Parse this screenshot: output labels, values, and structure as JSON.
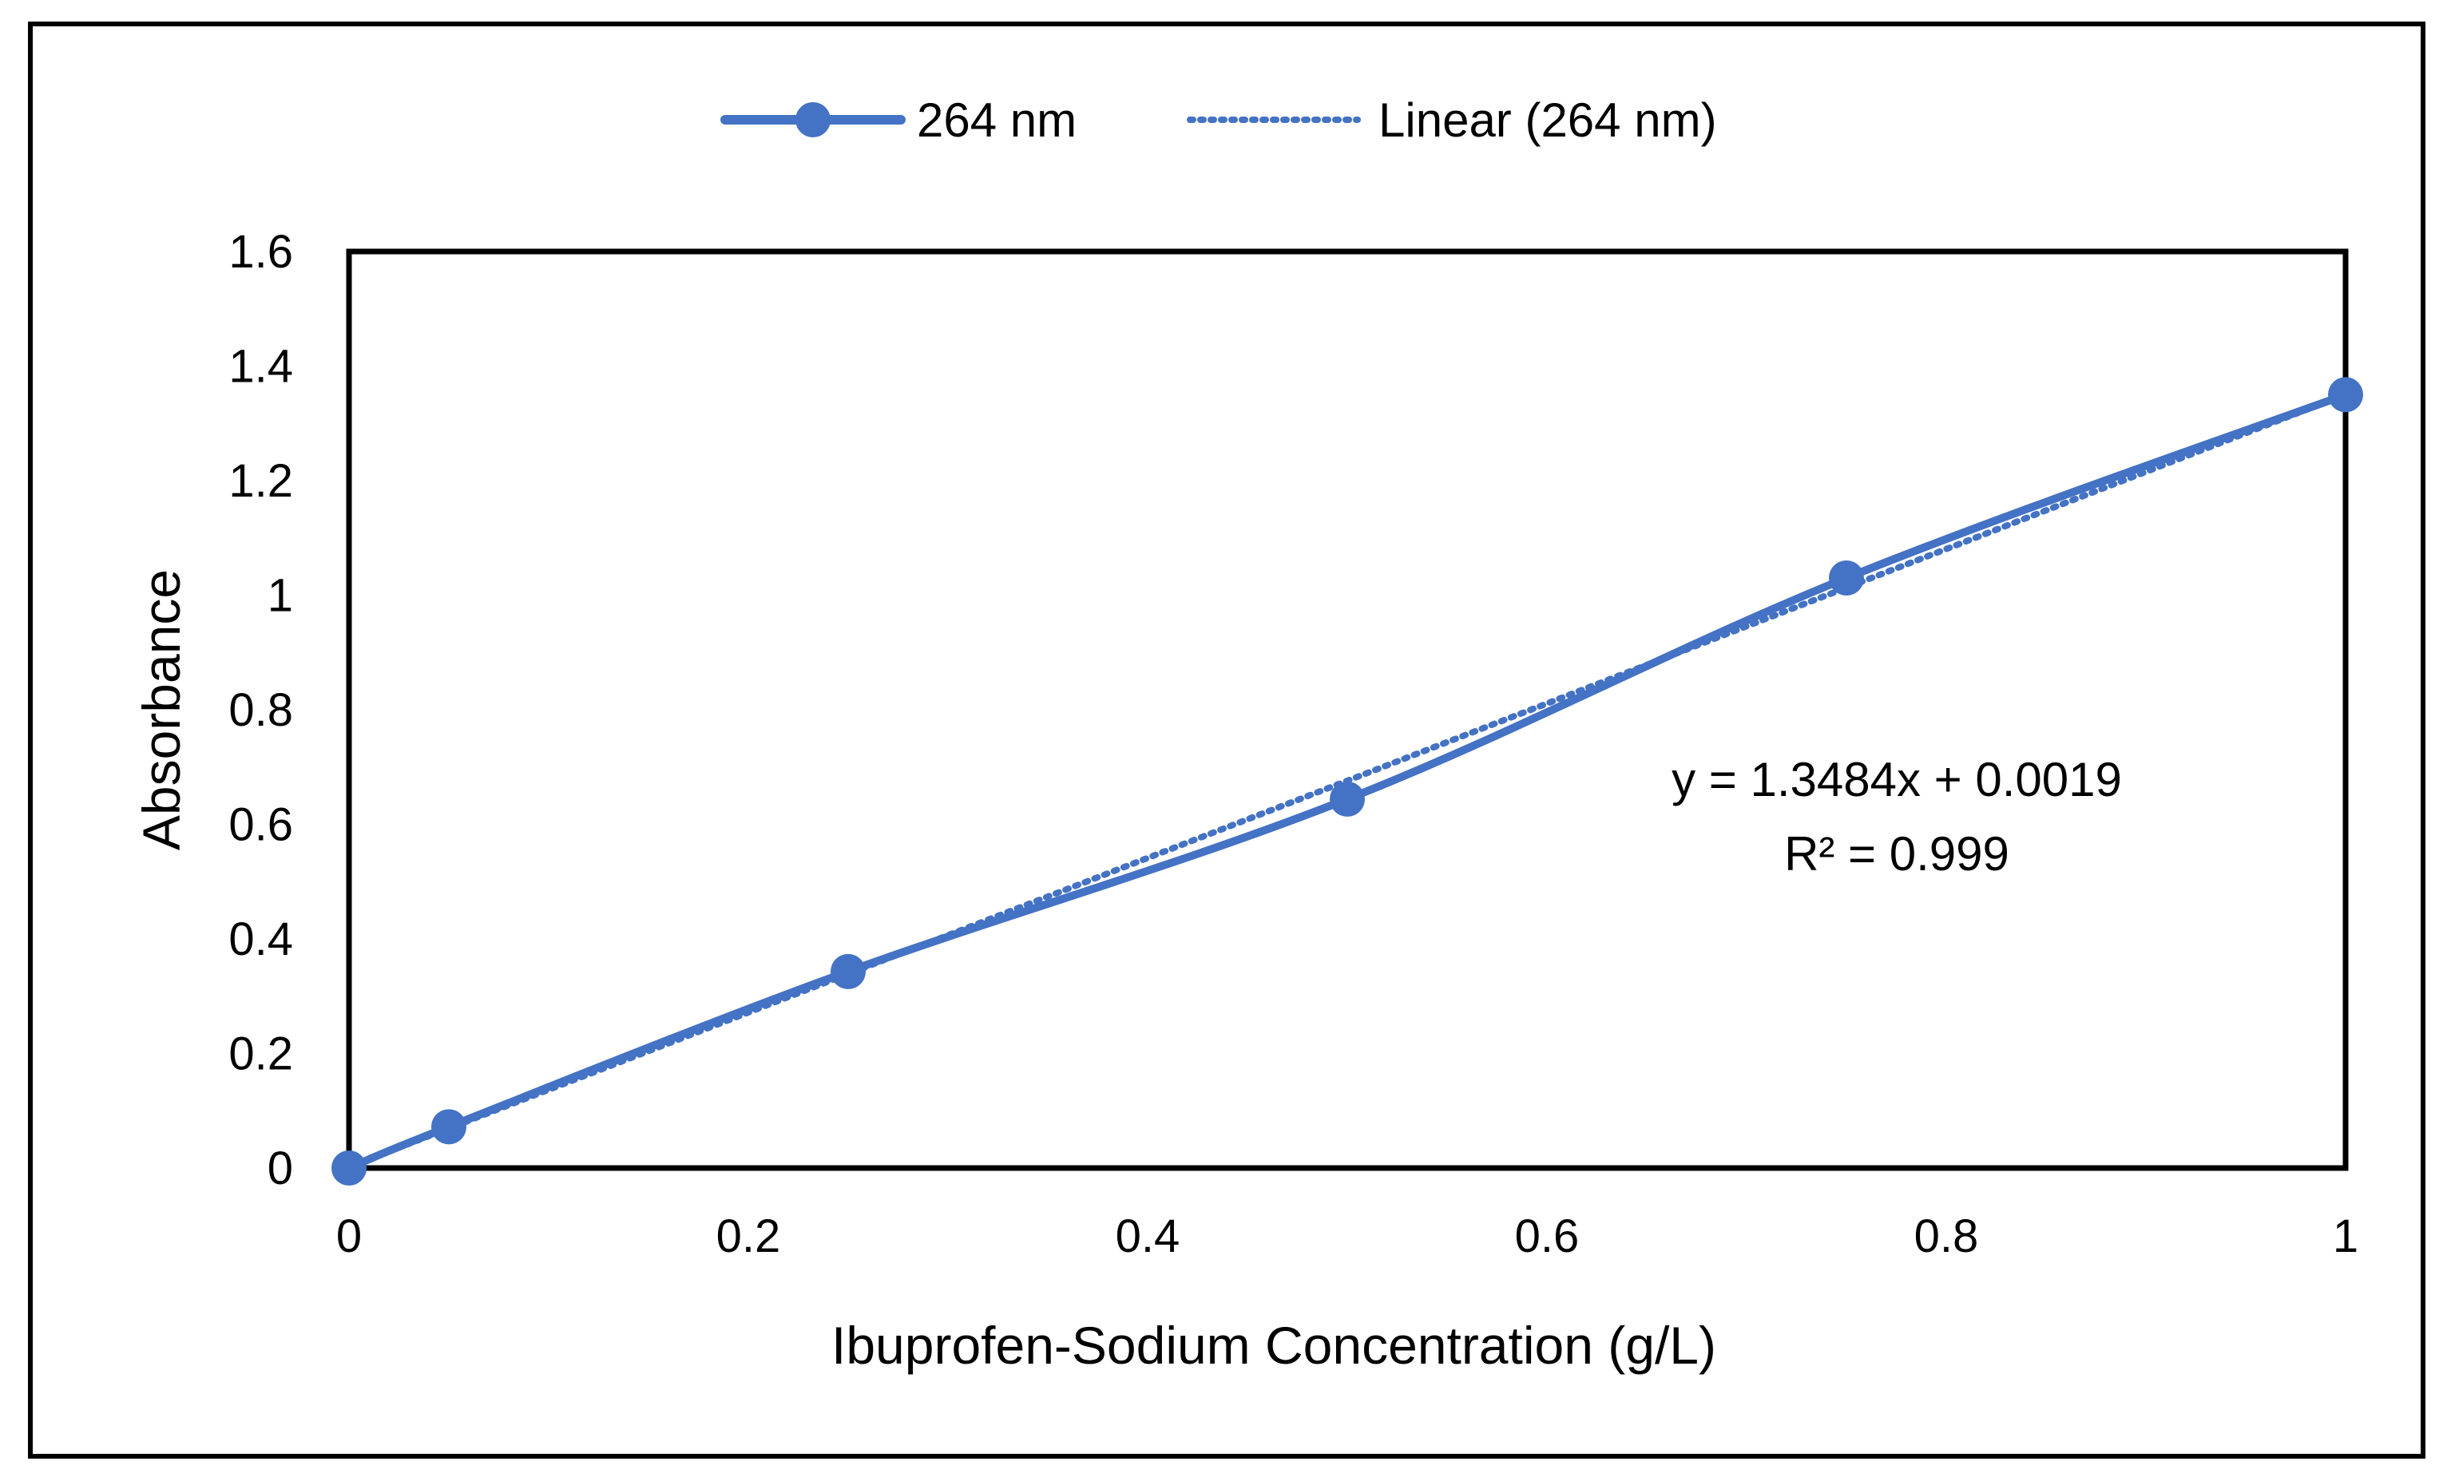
{
  "chart_data": {
    "type": "scatter",
    "title": "",
    "xlabel": "Ibuprofen-Sodium Concentration (g/L)",
    "ylabel": "Absorbance",
    "xlim": [
      0,
      1
    ],
    "ylim": [
      0,
      1.6
    ],
    "xticks": [
      0,
      0.2,
      0.4,
      0.6,
      0.8,
      1
    ],
    "xtick_labels": [
      "0",
      "0.2",
      "0.4",
      "0.6",
      "0.8",
      "1"
    ],
    "yticks": [
      0,
      0.2,
      0.4,
      0.6,
      0.8,
      1,
      1.2,
      1.4,
      1.6
    ],
    "ytick_labels": [
      "0",
      "0.2",
      "0.4",
      "0.6",
      "0.8",
      "1",
      "1.2",
      "1.4",
      "1.6"
    ],
    "grid": false,
    "legend_position": "top-center",
    "series": [
      {
        "name": "264 nm",
        "style": "smooth-line-with-markers",
        "color": "#4472C4",
        "x": [
          0,
          0.05,
          0.25,
          0.5,
          0.75,
          1
        ],
        "y": [
          0,
          0.072,
          0.343,
          0.644,
          1.03,
          1.35
        ]
      }
    ],
    "trendline": {
      "name": "Linear (264 nm)",
      "type": "linear",
      "style": "dotted",
      "color": "#4472C4",
      "slope": 1.3484,
      "intercept": 0.0019,
      "equation_label": "y = 1.3484x + 0.0019",
      "r2_label": "R² = 0.999"
    }
  }
}
